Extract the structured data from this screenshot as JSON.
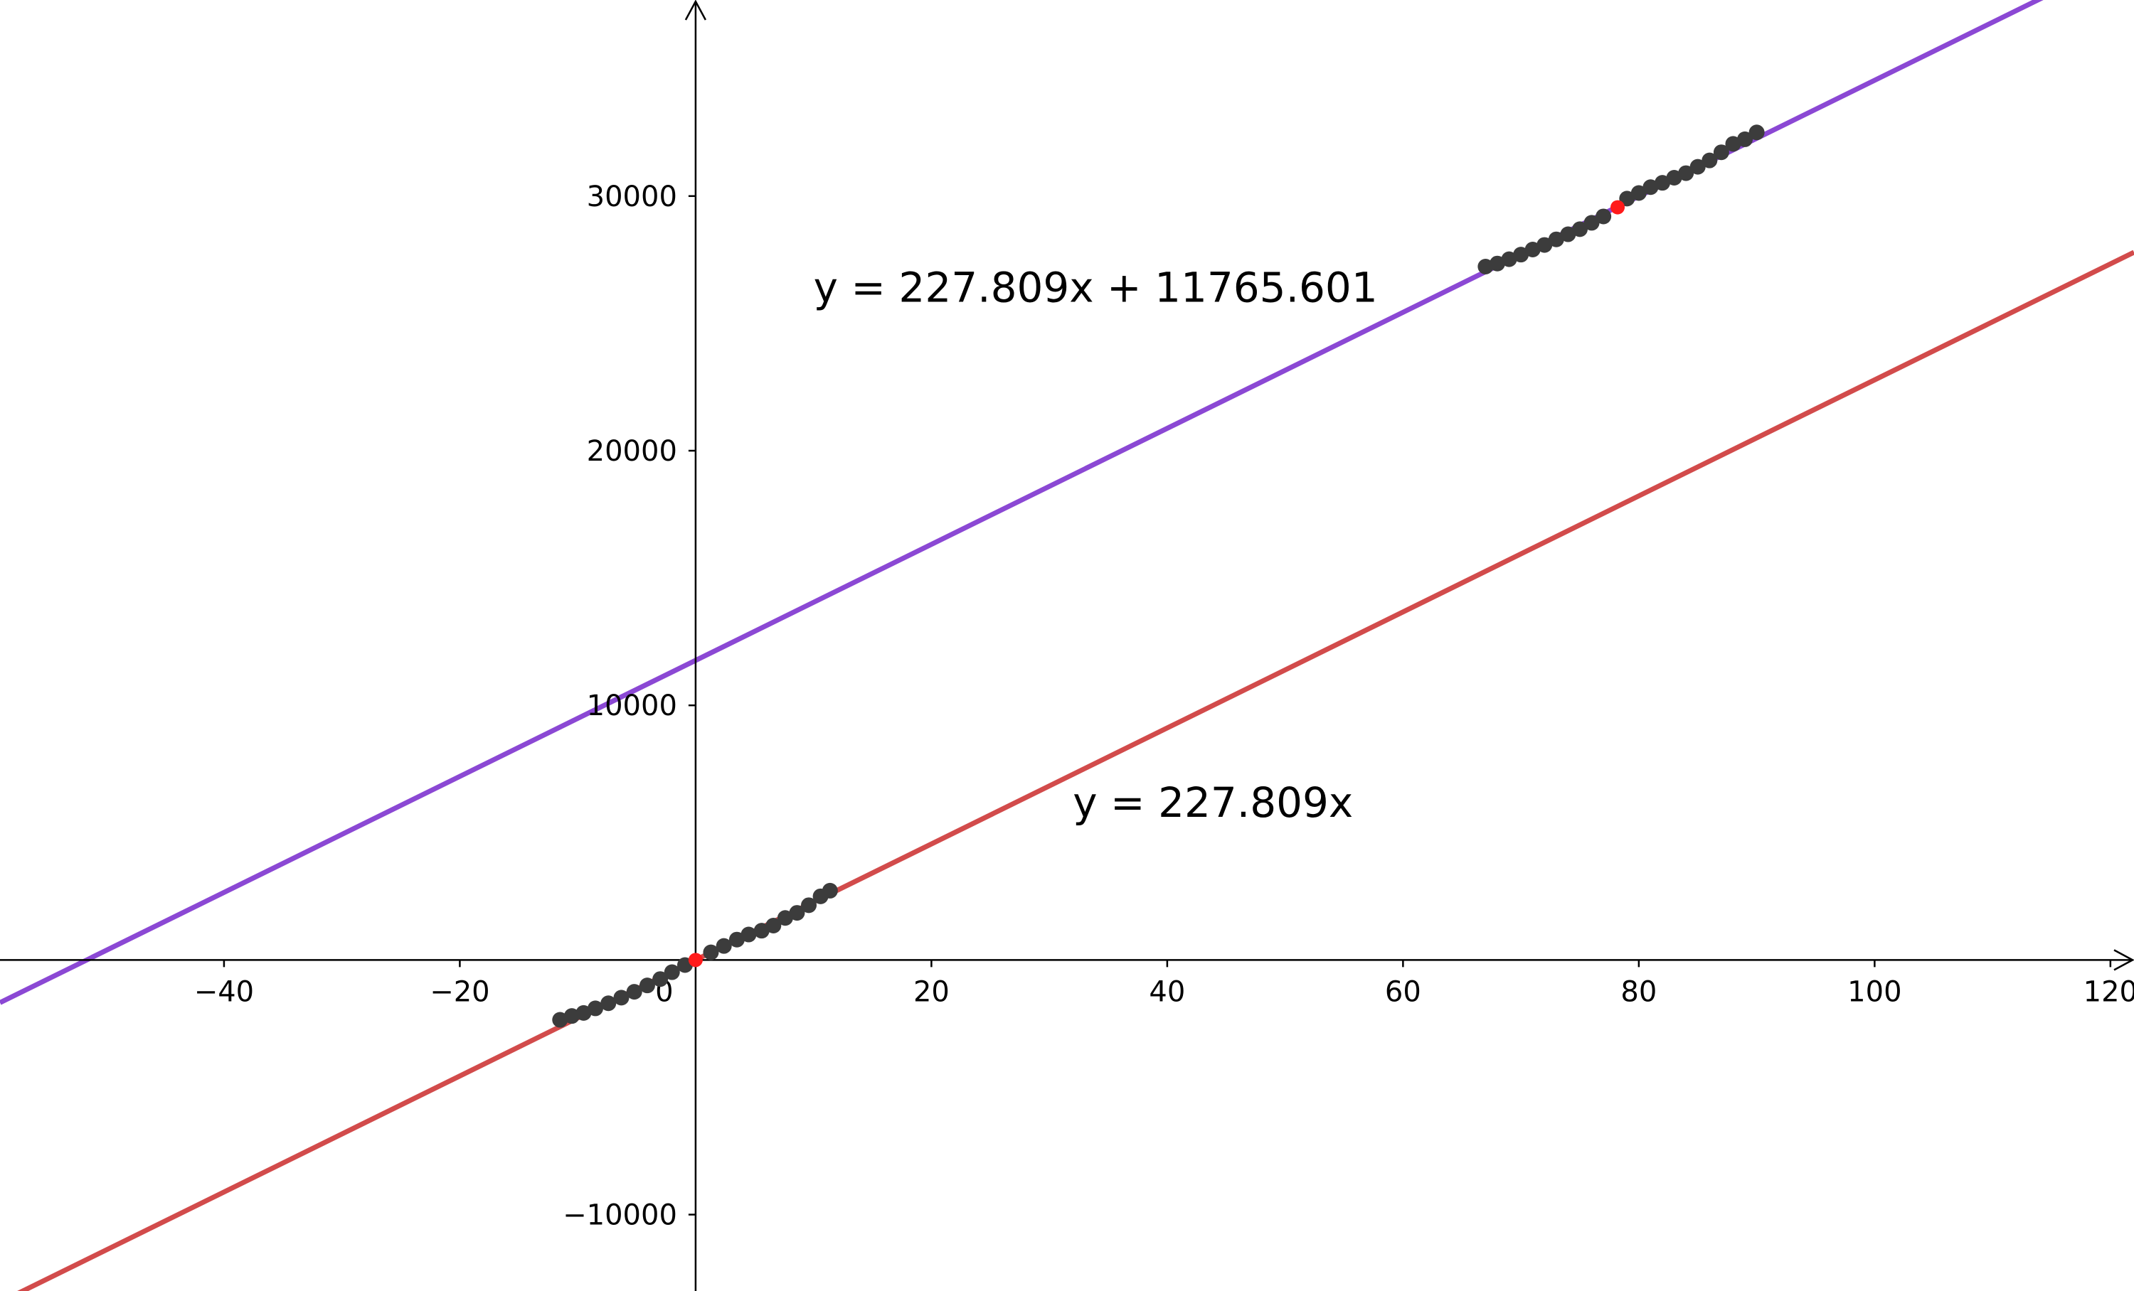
{
  "chart_data": {
    "type": "line",
    "title": "",
    "xlabel": "",
    "ylabel": "",
    "xlim": [
      -59,
      122
    ],
    "ylim": [
      -13000,
      37700
    ],
    "grid": false,
    "x_ticks": [
      -40,
      -20,
      0,
      20,
      40,
      60,
      80,
      100,
      120
    ],
    "y_ticks": [
      -10000,
      10000,
      20000,
      30000
    ],
    "x_tick_labels": [
      "−40",
      "−20",
      "0",
      "20",
      "40",
      "60",
      "80",
      "100",
      "120"
    ],
    "y_tick_labels": [
      "−10000",
      "10000",
      "20000",
      "30000"
    ],
    "series": [
      {
        "label": "y = 227.809x + 11765.601",
        "slope": 227.809,
        "intercept": 11765.601,
        "color": "#8b48d4",
        "label_pos": [
          10,
          25850
        ]
      },
      {
        "label": "y = 227.809x",
        "slope": 227.809,
        "intercept": 0,
        "color": "#d24b4b",
        "label_pos": [
          32,
          5620
        ]
      }
    ],
    "scatter_groups": [
      {
        "color": "#3c3c3c",
        "points": [
          [
            -11.5,
            -2350
          ],
          [
            -10.5,
            -2200
          ],
          [
            -9.5,
            -2080
          ],
          [
            -8.5,
            -1900
          ],
          [
            -7.4,
            -1700
          ],
          [
            -6.3,
            -1480
          ],
          [
            -5.2,
            -1250
          ],
          [
            -4.1,
            -1000
          ],
          [
            -3.0,
            -750
          ],
          [
            -2.0,
            -480
          ],
          [
            -0.9,
            -200
          ],
          [
            1.3,
            300
          ],
          [
            2.4,
            550
          ],
          [
            3.5,
            800
          ],
          [
            4.5,
            1000
          ],
          [
            5.6,
            1150
          ],
          [
            6.6,
            1350
          ],
          [
            7.6,
            1650
          ],
          [
            8.6,
            1850
          ],
          [
            9.6,
            2150
          ],
          [
            10.6,
            2500
          ],
          [
            11.4,
            2720
          ],
          [
            67.0,
            27230
          ],
          [
            68.0,
            27350
          ],
          [
            69.0,
            27520
          ],
          [
            70.0,
            27700
          ],
          [
            71.0,
            27900
          ],
          [
            72.0,
            28080
          ],
          [
            73.0,
            28300
          ],
          [
            74.0,
            28500
          ],
          [
            75.0,
            28700
          ],
          [
            76.0,
            28950
          ],
          [
            77.0,
            29200
          ],
          [
            79.0,
            29900
          ],
          [
            80.0,
            30120
          ],
          [
            81.0,
            30350
          ],
          [
            82.0,
            30520
          ],
          [
            83.0,
            30720
          ],
          [
            84.0,
            30900
          ],
          [
            85.0,
            31150
          ],
          [
            86.0,
            31400
          ],
          [
            87.0,
            31720
          ],
          [
            88.0,
            32050
          ],
          [
            89.0,
            32230
          ],
          [
            90.0,
            32500
          ]
        ]
      },
      {
        "color": "#ff1a1a",
        "points": [
          [
            0,
            0
          ],
          [
            78.2,
            29560
          ]
        ]
      }
    ],
    "axis_color": "#000000"
  }
}
